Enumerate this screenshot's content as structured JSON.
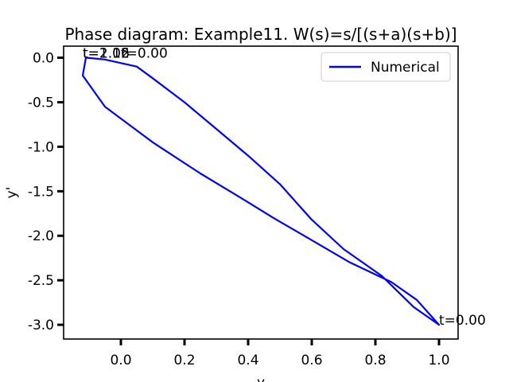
{
  "chart_data": {
    "type": "line",
    "title": "Phase diagram: Example11. W(s)=s/[(s+a)(s+b)]",
    "xlabel": "y",
    "ylabel": "y'",
    "xlim": [
      -0.18,
      1.06
    ],
    "ylim": [
      -3.16,
      0.13
    ],
    "xticks": [
      0.0,
      0.2,
      0.4,
      0.6,
      0.8,
      1.0
    ],
    "xtick_labels": [
      "0.0",
      "0.2",
      "0.4",
      "0.6",
      "0.8",
      "1.0"
    ],
    "yticks": [
      0.0,
      -0.5,
      -1.0,
      -1.5,
      -2.0,
      -2.5,
      -3.0
    ],
    "ytick_labels": [
      "0.0",
      "-0.5",
      "-1.0",
      "-1.5",
      "-2.0",
      "-2.5",
      "-3.0"
    ],
    "grid": false,
    "legend_position": "top-right",
    "series": [
      {
        "name": "Numerical",
        "color": "#0000ff",
        "x": [
          1.0,
          0.93,
          0.85,
          0.72,
          0.6,
          0.48,
          0.38,
          0.25,
          0.1,
          -0.05,
          -0.12,
          -0.11,
          -0.05,
          0.05,
          0.1,
          0.2,
          0.3,
          0.4,
          0.5,
          0.6,
          0.7,
          0.82,
          0.92,
          1.0
        ],
        "y": [
          -3.0,
          -2.72,
          -2.52,
          -2.3,
          -2.05,
          -1.8,
          -1.58,
          -1.3,
          -0.95,
          -0.55,
          -0.2,
          0.0,
          -0.02,
          -0.1,
          -0.23,
          -0.5,
          -0.8,
          -1.1,
          -1.42,
          -1.82,
          -2.15,
          -2.45,
          -2.8,
          -3.0
        ]
      }
    ],
    "annotations": [
      {
        "text": "t=0.00",
        "x": 1.0,
        "y": -3.0
      },
      {
        "text": "t=2.12",
        "x": -0.12,
        "y": 0.0
      },
      {
        "text": "t=1.06",
        "x": -0.12,
        "y": 0.0
      },
      {
        "text": "t=0.00",
        "x": 0.0,
        "y": 0.0
      }
    ]
  }
}
